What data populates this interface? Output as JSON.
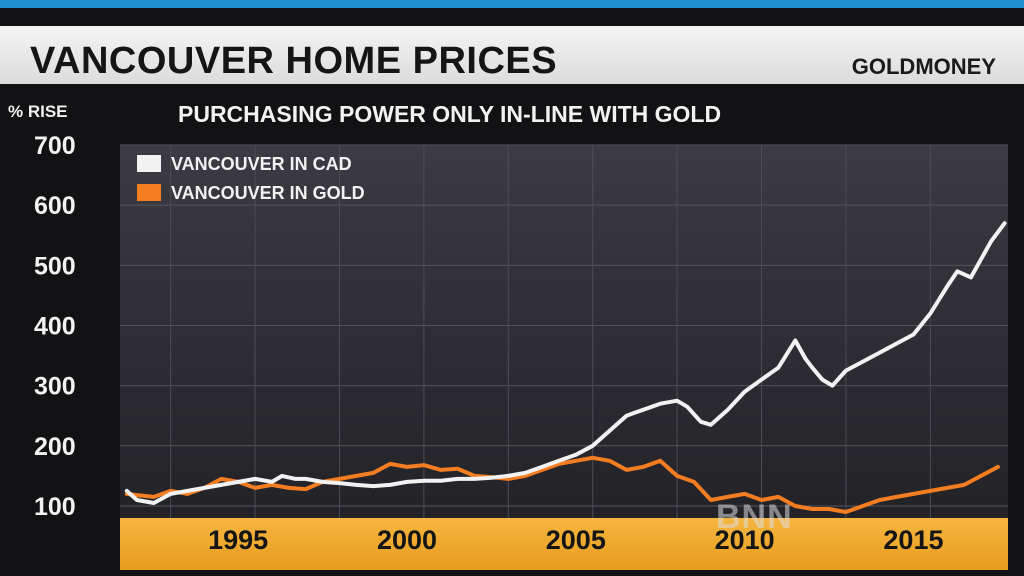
{
  "header": {
    "title": "VANCOUVER HOME PRICES",
    "brand": "GOLDMONEY"
  },
  "watermark": "BNN",
  "chart_data": {
    "type": "line",
    "subtitle": "PURCHASING POWER ONLY IN-LINE WITH GOLD",
    "ylabel": "% RISE",
    "ylim": [
      80,
      700
    ],
    "yticks": [
      100,
      200,
      300,
      400,
      500,
      600,
      700
    ],
    "xlim": [
      1991.5,
      2017.8
    ],
    "xticks": [
      1995,
      2000,
      2005,
      2010,
      2015
    ],
    "grid": true,
    "legend": "top-left",
    "series": [
      {
        "name": "VANCOUVER IN CAD",
        "color": "#f2f2f2",
        "points": [
          [
            1991.7,
            125
          ],
          [
            1992.0,
            110
          ],
          [
            1992.5,
            105
          ],
          [
            1993.0,
            120
          ],
          [
            1993.5,
            125
          ],
          [
            1994.0,
            130
          ],
          [
            1994.5,
            135
          ],
          [
            1995.0,
            140
          ],
          [
            1995.5,
            145
          ],
          [
            1996.0,
            140
          ],
          [
            1996.3,
            150
          ],
          [
            1996.7,
            145
          ],
          [
            1997.0,
            145
          ],
          [
            1997.5,
            140
          ],
          [
            1998.0,
            138
          ],
          [
            1998.5,
            135
          ],
          [
            1999.0,
            133
          ],
          [
            1999.5,
            135
          ],
          [
            2000.0,
            140
          ],
          [
            2000.5,
            142
          ],
          [
            2001.0,
            142
          ],
          [
            2001.5,
            145
          ],
          [
            2002.0,
            145
          ],
          [
            2002.5,
            147
          ],
          [
            2003.0,
            150
          ],
          [
            2003.5,
            155
          ],
          [
            2004.0,
            165
          ],
          [
            2004.5,
            175
          ],
          [
            2005.0,
            185
          ],
          [
            2005.5,
            200
          ],
          [
            2006.0,
            225
          ],
          [
            2006.5,
            250
          ],
          [
            2007.0,
            260
          ],
          [
            2007.5,
            270
          ],
          [
            2008.0,
            275
          ],
          [
            2008.3,
            265
          ],
          [
            2008.7,
            240
          ],
          [
            2009.0,
            235
          ],
          [
            2009.5,
            260
          ],
          [
            2010.0,
            290
          ],
          [
            2010.5,
            310
          ],
          [
            2011.0,
            330
          ],
          [
            2011.5,
            375
          ],
          [
            2011.8,
            345
          ],
          [
            2012.0,
            330
          ],
          [
            2012.3,
            310
          ],
          [
            2012.6,
            300
          ],
          [
            2013.0,
            325
          ],
          [
            2013.5,
            340
          ],
          [
            2014.0,
            355
          ],
          [
            2014.5,
            370
          ],
          [
            2015.0,
            385
          ],
          [
            2015.5,
            420
          ],
          [
            2016.0,
            465
          ],
          [
            2016.3,
            490
          ],
          [
            2016.7,
            480
          ],
          [
            2017.0,
            510
          ],
          [
            2017.3,
            540
          ],
          [
            2017.7,
            570
          ]
        ]
      },
      {
        "name": "VANCOUVER IN GOLD",
        "color": "#f47d21",
        "points": [
          [
            1991.7,
            120
          ],
          [
            1992.0,
            118
          ],
          [
            1992.5,
            115
          ],
          [
            1993.0,
            125
          ],
          [
            1993.5,
            120
          ],
          [
            1994.0,
            130
          ],
          [
            1994.5,
            145
          ],
          [
            1995.0,
            140
          ],
          [
            1995.5,
            130
          ],
          [
            1996.0,
            135
          ],
          [
            1996.5,
            130
          ],
          [
            1997.0,
            128
          ],
          [
            1997.5,
            140
          ],
          [
            1998.0,
            145
          ],
          [
            1998.5,
            150
          ],
          [
            1999.0,
            155
          ],
          [
            1999.5,
            170
          ],
          [
            2000.0,
            165
          ],
          [
            2000.5,
            168
          ],
          [
            2001.0,
            160
          ],
          [
            2001.5,
            162
          ],
          [
            2002.0,
            150
          ],
          [
            2002.5,
            148
          ],
          [
            2003.0,
            145
          ],
          [
            2003.5,
            150
          ],
          [
            2004.0,
            160
          ],
          [
            2004.5,
            170
          ],
          [
            2005.0,
            175
          ],
          [
            2005.5,
            180
          ],
          [
            2006.0,
            175
          ],
          [
            2006.5,
            160
          ],
          [
            2007.0,
            165
          ],
          [
            2007.5,
            175
          ],
          [
            2008.0,
            150
          ],
          [
            2008.5,
            140
          ],
          [
            2009.0,
            110
          ],
          [
            2009.5,
            115
          ],
          [
            2010.0,
            120
          ],
          [
            2010.5,
            110
          ],
          [
            2011.0,
            115
          ],
          [
            2011.5,
            100
          ],
          [
            2012.0,
            95
          ],
          [
            2012.5,
            95
          ],
          [
            2013.0,
            90
          ],
          [
            2013.5,
            100
          ],
          [
            2014.0,
            110
          ],
          [
            2014.5,
            115
          ],
          [
            2015.0,
            120
          ],
          [
            2015.5,
            125
          ],
          [
            2016.0,
            130
          ],
          [
            2016.5,
            135
          ],
          [
            2017.0,
            150
          ],
          [
            2017.5,
            165
          ]
        ]
      }
    ]
  }
}
